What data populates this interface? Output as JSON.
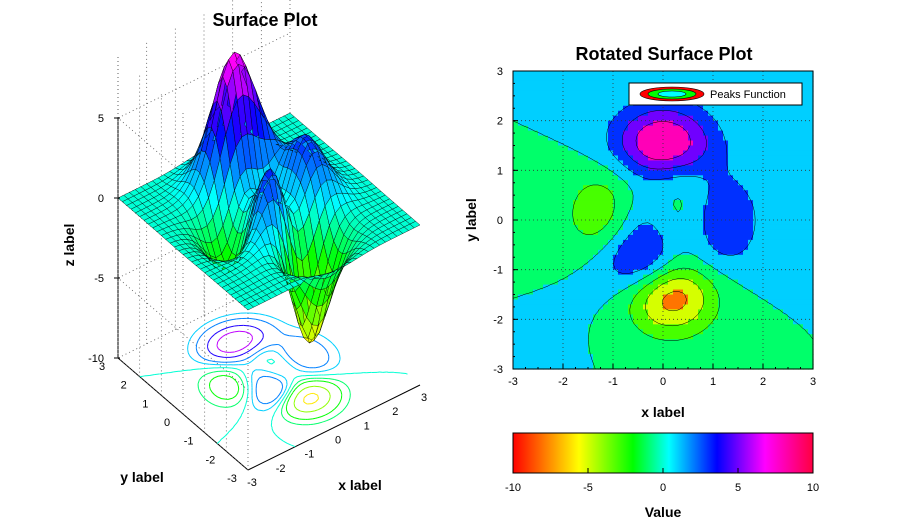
{
  "chart_data": [
    {
      "type": "surface",
      "title": "Surface Plot",
      "function": "peaks",
      "xlabel": "x label",
      "ylabel": "y label",
      "zlabel": "z label",
      "xlim": [
        -3,
        3
      ],
      "ylim": [
        -3,
        3
      ],
      "zlim": [
        -10,
        5
      ],
      "x_ticks": [
        "-3",
        "-2",
        "-1",
        "0",
        "1",
        "2",
        "3"
      ],
      "y_ticks": [
        "3",
        "2",
        "1",
        "0",
        "-1",
        "-2",
        "-3"
      ],
      "z_ticks": [
        "5",
        "0",
        "-5",
        "-10"
      ],
      "projected_contours": true,
      "grid": true
    },
    {
      "type": "filled-contour",
      "title": "Rotated Surface Plot",
      "function": "peaks",
      "xlabel": "x label",
      "ylabel": "y label",
      "xlim": [
        -3,
        3
      ],
      "ylim": [
        -3,
        3
      ],
      "x_ticks": [
        "-3",
        "-2",
        "-1",
        "0",
        "1",
        "2",
        "3"
      ],
      "y_ticks": [
        "3",
        "2",
        "1",
        "0",
        "-1",
        "-2",
        "-3"
      ],
      "legend": {
        "entry": "Peaks Function",
        "position": "top-right"
      },
      "grid": true
    },
    {
      "type": "colorbar",
      "label": "Value",
      "range": [
        -10,
        10
      ],
      "ticks": [
        "-10",
        "-5",
        "0",
        "5",
        "10"
      ],
      "colormap": [
        "#ff0000",
        "#ffff00",
        "#00ff00",
        "#00ffff",
        "#0000ff",
        "#ff00ff",
        "#ff0040"
      ]
    }
  ]
}
